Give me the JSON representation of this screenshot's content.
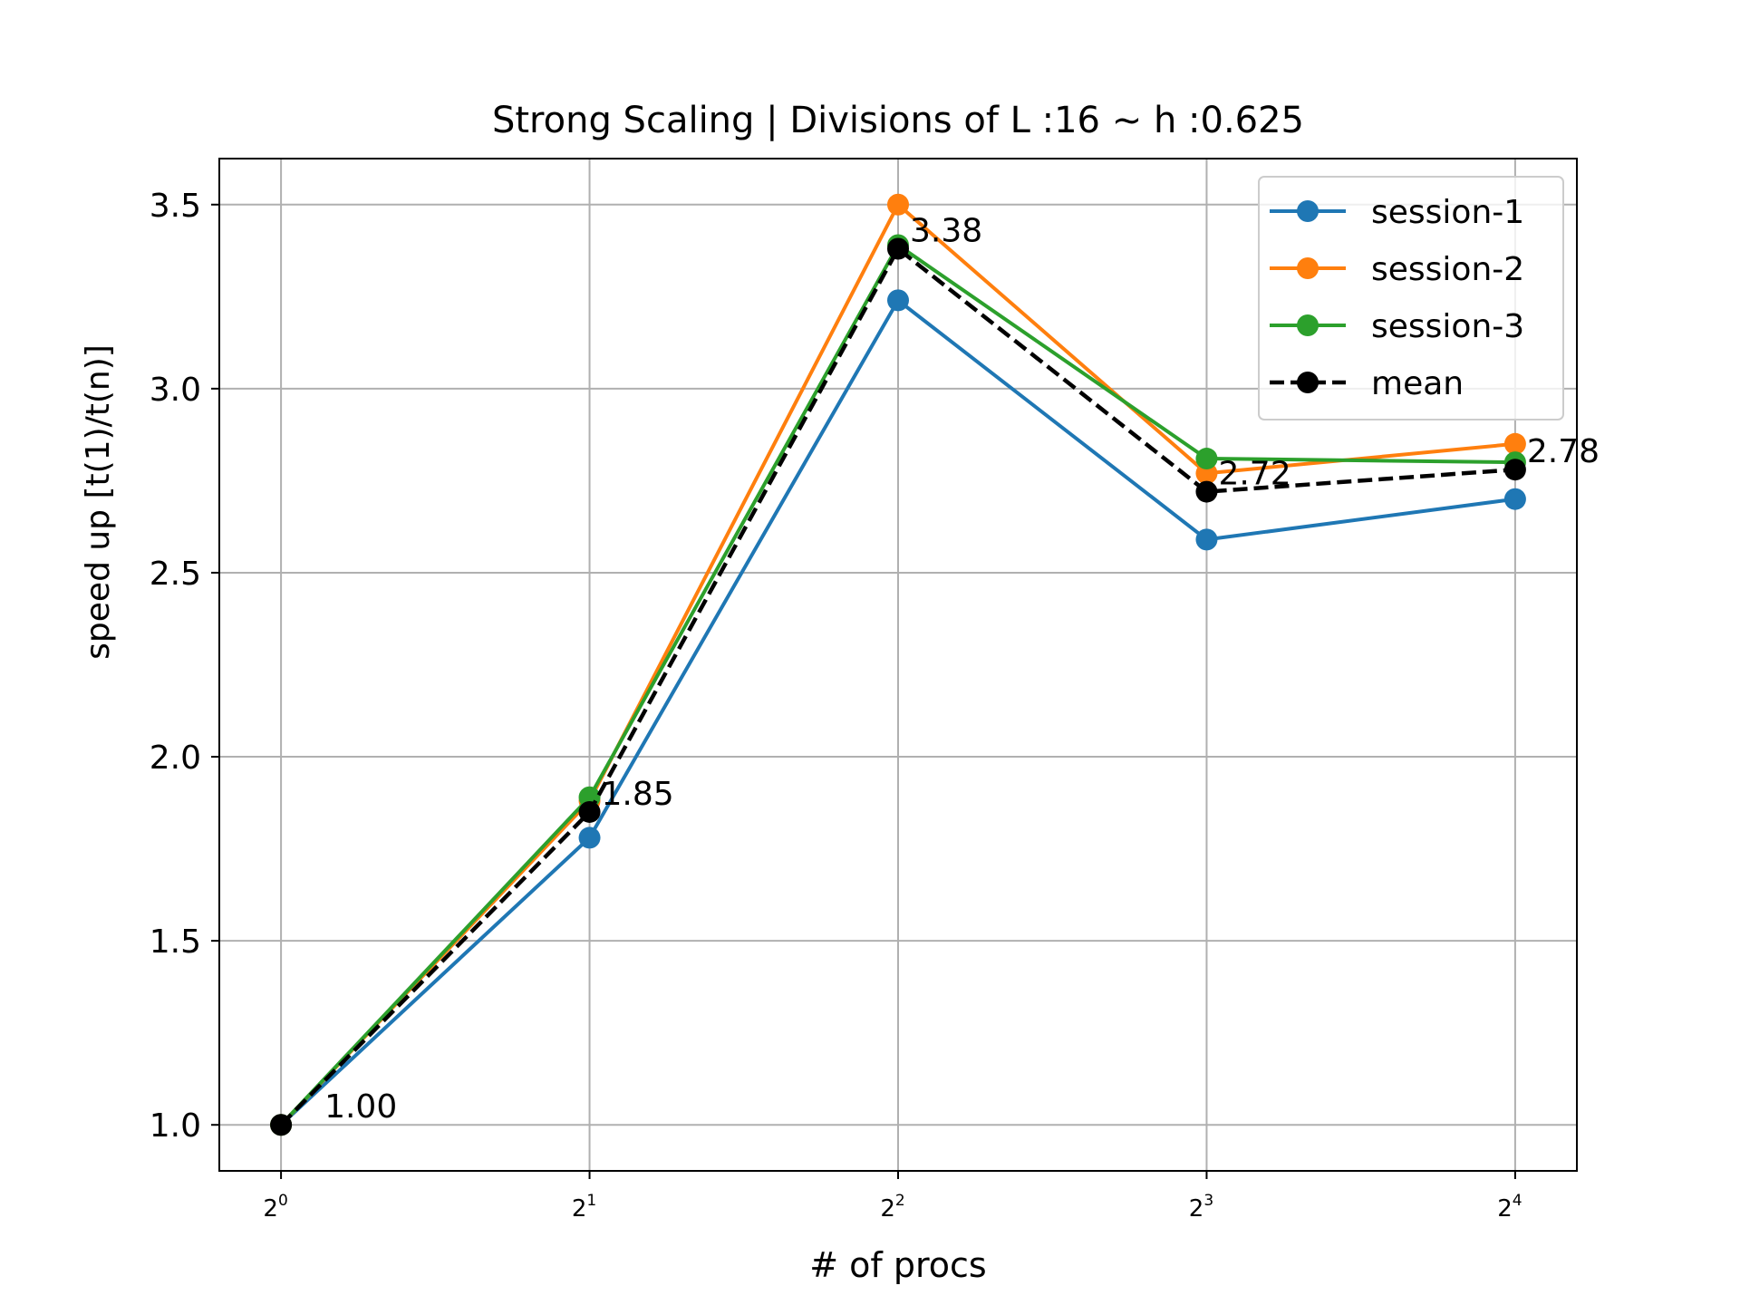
{
  "chart_data": {
    "type": "line",
    "title": "Strong Scaling | Divisions of L :16 ~ h :0.625",
    "xlabel": "# of procs",
    "ylabel": "speed up [t(1)/t(n)]",
    "x": [
      1,
      2,
      4,
      8,
      16
    ],
    "x_scale": "log2",
    "x_tick_labels": [
      {
        "base": "2",
        "exp": "0"
      },
      {
        "base": "2",
        "exp": "1"
      },
      {
        "base": "2",
        "exp": "2"
      },
      {
        "base": "2",
        "exp": "3"
      },
      {
        "base": "2",
        "exp": "4"
      }
    ],
    "ylim": [
      0.875,
      3.625
    ],
    "y_ticks": [
      1.0,
      1.5,
      2.0,
      2.5,
      3.0,
      3.5
    ],
    "y_tick_labels": [
      "1.0",
      "1.5",
      "2.0",
      "2.5",
      "3.0",
      "3.5"
    ],
    "grid": true,
    "legend_position": "top-right",
    "series": [
      {
        "name": "session-1",
        "color": "#1f77b4",
        "style": "solid",
        "values": [
          1.0,
          1.78,
          3.24,
          2.59,
          2.7
        ]
      },
      {
        "name": "session-2",
        "color": "#ff7f0e",
        "style": "solid",
        "values": [
          1.0,
          1.88,
          3.5,
          2.77,
          2.85
        ]
      },
      {
        "name": "session-3",
        "color": "#2ca02c",
        "style": "solid",
        "values": [
          1.0,
          1.89,
          3.39,
          2.81,
          2.8
        ]
      },
      {
        "name": "mean",
        "color": "#000000",
        "style": "dashed",
        "values": [
          1.0,
          1.85,
          3.38,
          2.72,
          2.78
        ]
      }
    ],
    "annotations": [
      "1.00",
      "1.85",
      "3.38",
      "2.72",
      "2.78"
    ]
  }
}
